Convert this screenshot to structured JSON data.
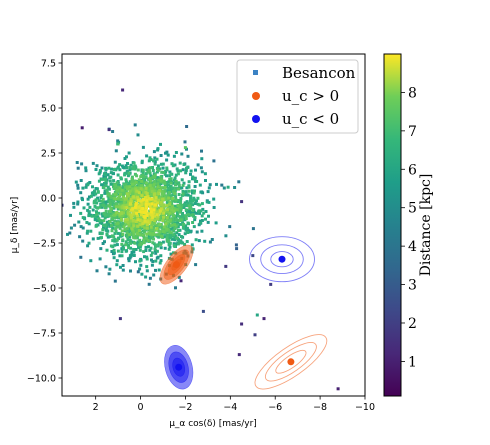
{
  "chart_data": {
    "type": "scatter",
    "xlabel": "μ_α cos(δ)  [mas/yr]",
    "ylabel": "μ_δ  [mas/yr]",
    "xlim": [
      3.5,
      -10
    ],
    "ylim": [
      -11,
      8
    ],
    "x_inverted": true,
    "xticks": [
      2,
      0,
      -2,
      -4,
      -6,
      -8,
      -10
    ],
    "yticks": [
      7.5,
      5.0,
      2.5,
      0.0,
      -2.5,
      -5.0,
      -7.5,
      -10.0
    ],
    "xtick_labels": [
      "2",
      "0",
      "−2",
      "−4",
      "−6",
      "−8",
      "−10"
    ],
    "ytick_labels": [
      "7.5",
      "5.0",
      "2.5",
      "0.0",
      "−2.5",
      "−5.0",
      "−7.5",
      "−10.0"
    ],
    "legend": {
      "placement": "top-right",
      "entries": [
        {
          "label": "Besancon",
          "color": "#3b82c4",
          "marker": "square"
        },
        {
          "label": "u_c > 0",
          "color": "#f05a14",
          "marker": "circle"
        },
        {
          "label": "u_c < 0",
          "color": "#1212f0",
          "marker": "circle"
        }
      ]
    },
    "besancon_cloud": {
      "center": [
        -0.2,
        -0.6
      ],
      "spread": [
        1.2,
        1.3
      ],
      "n_points": 2200,
      "color_scale": "viridis",
      "distance_range_kpc": [
        0.1,
        9
      ]
    },
    "besancon_outliers": [
      {
        "x": 0.8,
        "y": 6.0,
        "dist": 1.2
      },
      {
        "x": 1.4,
        "y": 3.8,
        "dist": 1.5
      },
      {
        "x": 2.6,
        "y": 3.9,
        "dist": 0.9
      },
      {
        "x": 3.5,
        "y": -0.4,
        "dist": 2.1
      },
      {
        "x": -4.5,
        "y": -0.2,
        "dist": 1.6
      },
      {
        "x": -3.9,
        "y": 0.6,
        "dist": 6.2
      },
      {
        "x": -5.0,
        "y": -3.2,
        "dist": 2.3
      },
      {
        "x": -5.8,
        "y": -4.8,
        "dist": 1.9
      },
      {
        "x": -5.5,
        "y": -6.7,
        "dist": 1.1
      },
      {
        "x": -4.5,
        "y": -7.0,
        "dist": 1.4
      },
      {
        "x": -5.1,
        "y": -7.6,
        "dist": 2.0
      },
      {
        "x": -4.4,
        "y": -8.7,
        "dist": 1.3
      },
      {
        "x": -8.8,
        "y": -10.6,
        "dist": 1.0
      },
      {
        "x": 0.9,
        "y": -6.7,
        "dist": 1.7
      },
      {
        "x": -2.8,
        "y": -6.3,
        "dist": 2.5
      },
      {
        "x": -3.8,
        "y": -3.8,
        "dist": 1.8
      },
      {
        "x": -1.8,
        "y": -4.6,
        "dist": 1.2
      },
      {
        "x": 0.1,
        "y": -4.1,
        "dist": 3.8
      },
      {
        "x": 1.0,
        "y": 3.0,
        "dist": 7.0
      },
      {
        "x": -2.0,
        "y": 2.8,
        "dist": 7.5
      },
      {
        "x": -5.2,
        "y": -6.5,
        "dist": 6.0
      }
    ],
    "uc_positive": [
      {
        "type": "filled",
        "x": -1.6,
        "y": -3.7,
        "color": "#f05a14",
        "ellipses": [
          [
            1.05,
            0.55,
            -52
          ],
          [
            0.8,
            0.42,
            -52
          ],
          [
            0.55,
            0.28,
            -52
          ],
          [
            0.3,
            0.16,
            -52
          ]
        ]
      },
      {
        "type": "outline",
        "x": -6.7,
        "y": -9.1,
        "color": "#f05a14",
        "ellipses": [
          [
            1.9,
            0.8,
            -35
          ],
          [
            1.35,
            0.56,
            -35
          ],
          [
            0.8,
            0.33,
            -35
          ]
        ]
      }
    ],
    "uc_negative": [
      {
        "type": "filled",
        "x": -1.7,
        "y": -9.4,
        "color": "#1212f0",
        "ellipses": [
          [
            1.0,
            0.75,
            75
          ],
          [
            0.7,
            0.52,
            75
          ],
          [
            0.42,
            0.32,
            75
          ]
        ]
      },
      {
        "type": "outline",
        "x": -6.3,
        "y": -3.4,
        "color": "#1212f0",
        "ellipses": [
          [
            1.45,
            1.25,
            0
          ],
          [
            0.95,
            0.8,
            0
          ],
          [
            0.5,
            0.42,
            0
          ]
        ]
      }
    ],
    "colorbar": {
      "label": "Distance [kpc]",
      "range": [
        0.1,
        9
      ],
      "ticks": [
        1,
        2,
        3,
        4,
        5,
        6,
        7,
        8
      ],
      "colormap": "viridis"
    }
  }
}
